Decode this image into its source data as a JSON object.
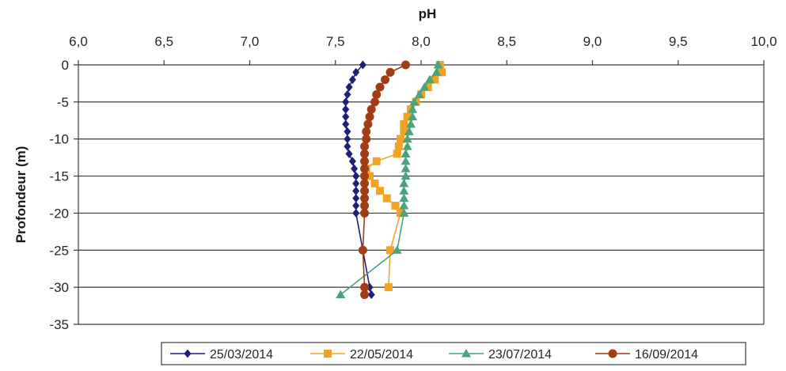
{
  "chart_data": {
    "type": "line",
    "title": "",
    "xlabel": "pH",
    "ylabel": "Profondeur  (m)",
    "xlim": [
      6.0,
      10.0
    ],
    "ylim": [
      -35,
      0
    ],
    "x_ticks": [
      "6,0",
      "6,5",
      "7,0",
      "7,5",
      "8,0",
      "8,5",
      "9,0",
      "9,5",
      "10,0"
    ],
    "y_ticks": [
      "0",
      "-5",
      "-10",
      "-15",
      "-20",
      "-25",
      "-30",
      "-35"
    ],
    "x_axis_position": "top",
    "grid": "horizontal",
    "legend_position": "bottom",
    "series": [
      {
        "name": "25/03/2014",
        "color": "#1f1f7a",
        "marker": "diamond",
        "points": [
          [
            7.66,
            0
          ],
          [
            7.62,
            -1
          ],
          [
            7.6,
            -2
          ],
          [
            7.58,
            -3
          ],
          [
            7.57,
            -4
          ],
          [
            7.56,
            -5
          ],
          [
            7.56,
            -6
          ],
          [
            7.56,
            -7
          ],
          [
            7.56,
            -8
          ],
          [
            7.57,
            -9
          ],
          [
            7.57,
            -10
          ],
          [
            7.57,
            -11
          ],
          [
            7.58,
            -12
          ],
          [
            7.6,
            -13
          ],
          [
            7.61,
            -14
          ],
          [
            7.62,
            -15
          ],
          [
            7.62,
            -16
          ],
          [
            7.62,
            -17
          ],
          [
            7.62,
            -18
          ],
          [
            7.62,
            -19
          ],
          [
            7.62,
            -20
          ],
          [
            7.7,
            -30
          ],
          [
            7.71,
            -31
          ]
        ]
      },
      {
        "name": "22/05/2014",
        "color": "#f2a324",
        "marker": "square",
        "points": [
          [
            8.11,
            0
          ],
          [
            8.12,
            -1
          ],
          [
            8.08,
            -2
          ],
          [
            8.04,
            -3
          ],
          [
            8.0,
            -4
          ],
          [
            7.97,
            -5
          ],
          [
            7.94,
            -6
          ],
          [
            7.92,
            -7
          ],
          [
            7.9,
            -8
          ],
          [
            7.9,
            -9
          ],
          [
            7.88,
            -10
          ],
          [
            7.87,
            -11
          ],
          [
            7.86,
            -12
          ],
          [
            7.74,
            -13
          ],
          [
            7.68,
            -14
          ],
          [
            7.7,
            -15
          ],
          [
            7.73,
            -16
          ],
          [
            7.76,
            -17
          ],
          [
            7.8,
            -18
          ],
          [
            7.85,
            -19
          ],
          [
            7.88,
            -20
          ],
          [
            7.82,
            -25
          ],
          [
            7.81,
            -30
          ]
        ]
      },
      {
        "name": "23/07/2014",
        "color": "#4aa37c",
        "marker": "triangle",
        "points": [
          [
            8.1,
            0
          ],
          [
            8.09,
            -1
          ],
          [
            8.05,
            -2
          ],
          [
            8.02,
            -3
          ],
          [
            7.99,
            -4
          ],
          [
            7.96,
            -5
          ],
          [
            7.95,
            -6
          ],
          [
            7.95,
            -7
          ],
          [
            7.94,
            -8
          ],
          [
            7.93,
            -9
          ],
          [
            7.92,
            -10
          ],
          [
            7.92,
            -11
          ],
          [
            7.91,
            -12
          ],
          [
            7.91,
            -13
          ],
          [
            7.91,
            -14
          ],
          [
            7.91,
            -15
          ],
          [
            7.9,
            -16
          ],
          [
            7.9,
            -17
          ],
          [
            7.9,
            -18
          ],
          [
            7.9,
            -19
          ],
          [
            7.9,
            -20
          ],
          [
            7.86,
            -25
          ],
          [
            7.53,
            -31
          ]
        ]
      },
      {
        "name": "16/09/2014",
        "color": "#a33b14",
        "marker": "circle",
        "points": [
          [
            7.91,
            0
          ],
          [
            7.82,
            -1
          ],
          [
            7.79,
            -2
          ],
          [
            7.76,
            -3
          ],
          [
            7.74,
            -4
          ],
          [
            7.73,
            -5
          ],
          [
            7.71,
            -6
          ],
          [
            7.7,
            -7
          ],
          [
            7.69,
            -8
          ],
          [
            7.68,
            -9
          ],
          [
            7.68,
            -10
          ],
          [
            7.67,
            -11
          ],
          [
            7.67,
            -12
          ],
          [
            7.67,
            -13
          ],
          [
            7.67,
            -14
          ],
          [
            7.67,
            -15
          ],
          [
            7.67,
            -16
          ],
          [
            7.67,
            -17
          ],
          [
            7.67,
            -18
          ],
          [
            7.67,
            -19
          ],
          [
            7.67,
            -20
          ],
          [
            7.66,
            -25
          ],
          [
            7.67,
            -30
          ],
          [
            7.67,
            -31
          ]
        ]
      }
    ]
  }
}
